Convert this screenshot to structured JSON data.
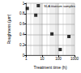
{
  "chart_data": {
    "type": "scatter",
    "x_label": "Treatment time (h)",
    "y_label": "Roughness (μm)",
    "series": [
      {
        "name": "SLA titanium samples",
        "color": "#000000",
        "marker": "square",
        "x": [
          1.2,
          4,
          40,
          130,
          450
        ],
        "values": [
          0.9,
          0.77,
          0.41,
          0.11,
          0.36
        ]
      }
    ],
    "xlim": [
      1,
      1000
    ],
    "xticks": [
      1,
      10,
      100,
      1000
    ],
    "ylim": [
      0,
      1
    ],
    "yticks": [
      0,
      0.2,
      0.4,
      0.6,
      0.8,
      1
    ],
    "log": "x",
    "grid": true,
    "legend": "top-right"
  }
}
